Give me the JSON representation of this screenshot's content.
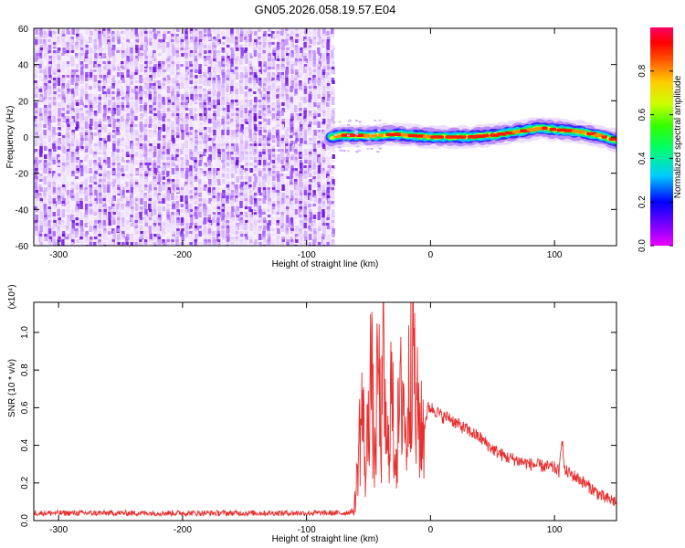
{
  "title": "GN05.2026.058.19.57.E04",
  "chart_data": [
    {
      "type": "heatmap",
      "title": "GN05.2026.058.19.57.E04",
      "xlabel": "Height of straight line (km)",
      "ylabel": "Frequency (Hz)",
      "xlim": [
        -320,
        150
      ],
      "ylim": [
        -60,
        60
      ],
      "xticks": [
        -300,
        -200,
        -100,
        0,
        100
      ],
      "yticks": [
        -60,
        -40,
        -20,
        0,
        20,
        40,
        60
      ],
      "grid": false,
      "noise_region_x": [
        -320,
        -80
      ],
      "ridge": {
        "x": [
          -80,
          -70,
          -60,
          -50,
          -40,
          -30,
          -20,
          -10,
          0,
          10,
          20,
          30,
          40,
          50,
          60,
          70,
          80,
          90,
          100,
          110,
          120,
          130,
          140,
          150
        ],
        "y": [
          0,
          1,
          1,
          0.5,
          1,
          1.5,
          1,
          0.5,
          0,
          0,
          0,
          0,
          0.5,
          1,
          2,
          3,
          4,
          5,
          4,
          3.5,
          3,
          1.5,
          0,
          -2
        ],
        "peak_amplitude": 1.0
      },
      "colorbar": {
        "label": "Normalized spectral amplitude",
        "range": [
          0,
          1
        ],
        "ticks": [
          0.0,
          0.2,
          0.4,
          0.6,
          0.8
        ]
      }
    },
    {
      "type": "line",
      "xlabel": "Height of straight line (km)",
      "ylabel": "SNR (10 * v/v)",
      "scale_label": "(x10⁴)",
      "xlim": [
        -320,
        150
      ],
      "ylim": [
        0,
        1.16
      ],
      "xticks": [
        -300,
        -200,
        -100,
        0,
        100
      ],
      "yticks": [
        0.0,
        0.2,
        0.4,
        0.6,
        0.8,
        1.0
      ],
      "grid": false,
      "series": [
        {
          "color": "#e83030",
          "x": [
            -320,
            -300,
            -250,
            -200,
            -150,
            -100,
            -70,
            -62,
            -60,
            -58,
            -55,
            -52,
            -50,
            -48,
            -45,
            -42,
            -40,
            -38,
            -35,
            -32,
            -30,
            -28,
            -25,
            -22,
            -20,
            -18,
            -16,
            -14,
            -12,
            -10,
            -8,
            -5,
            -2,
            0,
            5,
            10,
            15,
            20,
            25,
            30,
            40,
            50,
            60,
            70,
            80,
            90,
            100,
            104,
            106,
            108,
            110,
            120,
            130,
            140,
            150
          ],
          "y": [
            0.04,
            0.04,
            0.04,
            0.04,
            0.04,
            0.04,
            0.04,
            0.05,
            0.15,
            0.4,
            0.6,
            0.2,
            0.7,
            0.8,
            0.3,
            0.85,
            0.4,
            0.8,
            0.3,
            0.7,
            0.5,
            0.35,
            0.55,
            0.75,
            0.4,
            0.6,
            0.98,
            1.16,
            0.5,
            0.6,
            0.45,
            0.5,
            0.6,
            0.6,
            0.58,
            0.55,
            0.55,
            0.52,
            0.5,
            0.48,
            0.44,
            0.38,
            0.34,
            0.32,
            0.3,
            0.29,
            0.28,
            0.26,
            0.46,
            0.26,
            0.26,
            0.22,
            0.17,
            0.12,
            0.1
          ]
        }
      ]
    }
  ]
}
